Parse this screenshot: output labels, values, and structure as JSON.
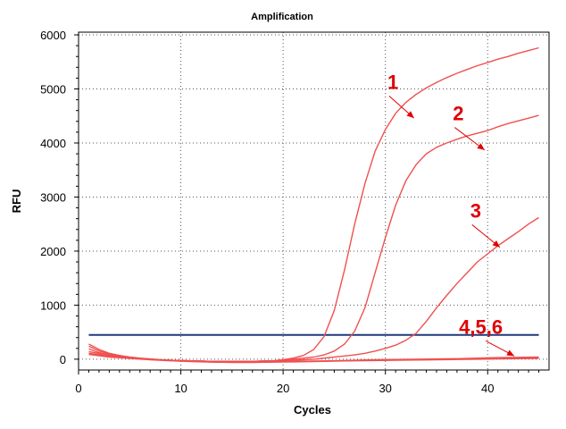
{
  "chart_data": {
    "type": "line",
    "title": "Amplification",
    "xlabel": "Cycles",
    "ylabel": "RFU",
    "xlim": [
      0,
      46
    ],
    "ylim": [
      -200,
      6050
    ],
    "xticks": [
      0,
      10,
      20,
      30,
      40
    ],
    "yticks": [
      0,
      1000,
      2000,
      3000,
      4000,
      5000,
      6000
    ],
    "grid": "dotted",
    "series_color": "#f05050",
    "threshold": {
      "value": 450,
      "x": [
        1,
        45
      ],
      "color": "#1f3a7a"
    },
    "series": [
      {
        "x": [
          1,
          2,
          3,
          4,
          5,
          6,
          7,
          8,
          9,
          10,
          11,
          12,
          13,
          14,
          15,
          16,
          17,
          18,
          19,
          20,
          21,
          22,
          23,
          24,
          25,
          26,
          27,
          28,
          29,
          30,
          31,
          32,
          33,
          34,
          35,
          36,
          37,
          38,
          39,
          40,
          41,
          42,
          43,
          44,
          45
        ],
        "values": [
          280,
          180,
          110,
          70,
          40,
          20,
          5,
          -10,
          -20,
          -25,
          -30,
          -35,
          -40,
          -40,
          -40,
          -40,
          -40,
          -35,
          -30,
          -10,
          20,
          70,
          180,
          420,
          900,
          1650,
          2500,
          3250,
          3850,
          4250,
          4550,
          4750,
          4900,
          5020,
          5120,
          5210,
          5290,
          5360,
          5430,
          5490,
          5550,
          5600,
          5660,
          5710,
          5760
        ]
      },
      {
        "x": [
          1,
          2,
          3,
          4,
          5,
          6,
          7,
          8,
          9,
          10,
          11,
          12,
          13,
          14,
          15,
          16,
          17,
          18,
          19,
          20,
          21,
          22,
          23,
          24,
          25,
          26,
          27,
          28,
          29,
          30,
          31,
          32,
          33,
          34,
          35,
          36,
          37,
          38,
          39,
          40,
          41,
          42,
          43,
          44,
          45
        ],
        "values": [
          240,
          150,
          100,
          65,
          35,
          15,
          0,
          -15,
          -20,
          -25,
          -30,
          -35,
          -40,
          -40,
          -40,
          -40,
          -40,
          -35,
          -30,
          -20,
          0,
          20,
          40,
          80,
          150,
          280,
          520,
          950,
          1600,
          2250,
          2850,
          3300,
          3600,
          3800,
          3920,
          4000,
          4070,
          4130,
          4180,
          4230,
          4300,
          4360,
          4410,
          4460,
          4510
        ]
      },
      {
        "x": [
          1,
          2,
          3,
          4,
          5,
          6,
          7,
          8,
          9,
          10,
          11,
          12,
          13,
          14,
          15,
          16,
          17,
          18,
          19,
          20,
          21,
          22,
          23,
          24,
          25,
          26,
          27,
          28,
          29,
          30,
          31,
          32,
          33,
          34,
          35,
          36,
          37,
          38,
          39,
          40,
          41,
          42,
          43,
          44,
          45
        ],
        "values": [
          190,
          120,
          80,
          55,
          30,
          10,
          -5,
          -15,
          -20,
          -25,
          -30,
          -35,
          -40,
          -40,
          -40,
          -40,
          -40,
          -35,
          -30,
          -30,
          -20,
          -10,
          0,
          20,
          40,
          60,
          80,
          110,
          150,
          200,
          260,
          350,
          480,
          700,
          950,
          1180,
          1400,
          1600,
          1800,
          1950,
          2100,
          2230,
          2360,
          2500,
          2620
        ]
      },
      {
        "x": [
          1,
          3,
          5,
          7,
          9,
          11,
          13,
          15,
          17,
          19,
          21,
          23,
          25,
          27,
          29,
          31,
          33,
          35,
          37,
          39,
          41,
          43,
          45
        ],
        "values": [
          140,
          70,
          30,
          0,
          -20,
          -35,
          -45,
          -50,
          -50,
          -45,
          -40,
          -35,
          -30,
          -25,
          -20,
          -15,
          -10,
          -5,
          0,
          5,
          10,
          15,
          20
        ]
      },
      {
        "x": [
          1,
          3,
          5,
          7,
          9,
          11,
          13,
          15,
          17,
          19,
          21,
          23,
          25,
          27,
          29,
          31,
          33,
          35,
          37,
          39,
          41,
          43,
          45
        ],
        "values": [
          110,
          55,
          25,
          -5,
          -25,
          -40,
          -50,
          -55,
          -55,
          -50,
          -45,
          -40,
          -30,
          -20,
          -10,
          -5,
          0,
          5,
          10,
          20,
          30,
          35,
          40
        ]
      },
      {
        "x": [
          1,
          3,
          5,
          7,
          9,
          11,
          13,
          15,
          17,
          19,
          21,
          23,
          25,
          27,
          29,
          31,
          33,
          35,
          37,
          39,
          41,
          43,
          45
        ],
        "values": [
          90,
          40,
          15,
          -10,
          -30,
          -45,
          -55,
          -60,
          -60,
          -55,
          -50,
          -45,
          -35,
          -30,
          -25,
          -20,
          -15,
          -10,
          -5,
          0,
          5,
          10,
          15
        ]
      }
    ],
    "annotations": [
      {
        "text": "1",
        "x": 30.2,
        "y": 5000,
        "arrow_to": [
          32.8,
          4460
        ]
      },
      {
        "text": "2",
        "x": 36.6,
        "y": 4420,
        "arrow_to": [
          39.7,
          3870
        ]
      },
      {
        "text": "3",
        "x": 38.3,
        "y": 2620,
        "arrow_to": [
          41.2,
          2070
        ]
      },
      {
        "text": "4,5,6",
        "x": 37.2,
        "y": 470,
        "arrow_to": [
          42.6,
          60
        ]
      }
    ],
    "annotation_color": "#e00000"
  }
}
